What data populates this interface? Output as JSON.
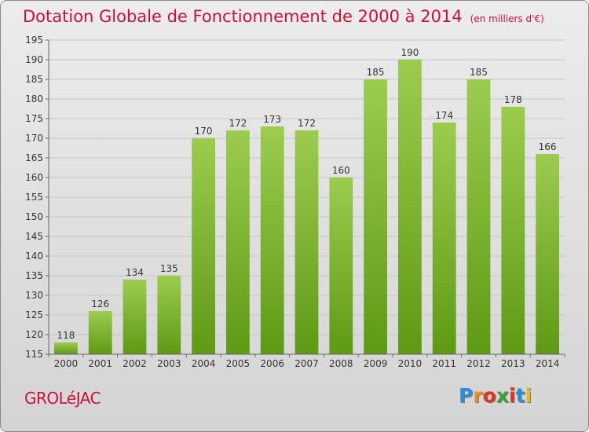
{
  "title": "Dotation Globale de Fonctionnement de 2000 à 2014",
  "unit_note": "(en milliers d'€)",
  "commune": "GROLéJAC",
  "logo": {
    "letters": [
      "P",
      "r",
      "o",
      "x",
      "i",
      "t",
      "i"
    ],
    "colors": [
      "#2a8fd4",
      "#f08c1e",
      "#e8331c",
      "#3aa038",
      "#e8331c",
      "#2a8fd4",
      "#f0b81e"
    ]
  },
  "colors": {
    "bar_top": "#9ccc4e",
    "bar_bottom": "#5e9a14",
    "accent": "#c8103c"
  },
  "chart_data": {
    "type": "bar",
    "title": "Dotation Globale de Fonctionnement de 2000 à 2014",
    "subtitle": "(en milliers d'€)",
    "categories": [
      "2000",
      "2001",
      "2002",
      "2003",
      "2004",
      "2005",
      "2006",
      "2007",
      "2008",
      "2009",
      "2010",
      "2011",
      "2012",
      "2013",
      "2014"
    ],
    "values": [
      118,
      126,
      134,
      135,
      170,
      172,
      173,
      172,
      160,
      185,
      190,
      174,
      185,
      178,
      166
    ],
    "ylim": [
      115,
      195
    ],
    "yticks": [
      115,
      120,
      125,
      130,
      135,
      140,
      145,
      150,
      155,
      160,
      165,
      170,
      175,
      180,
      185,
      190,
      195
    ],
    "grid": true,
    "legend": "none"
  }
}
